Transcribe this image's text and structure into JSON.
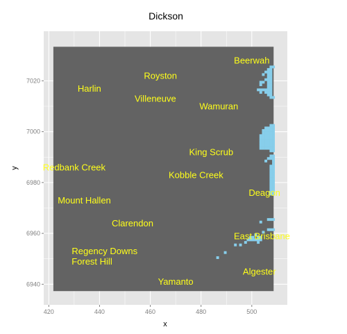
{
  "title": "Dickson",
  "colors": {
    "panel_background": "#e5e5e5",
    "gridline": "#ffffff",
    "map_land": "#636363",
    "map_water": "#87ceeb",
    "label_text": "#ffff1a"
  },
  "axes": {
    "x": {
      "title": "x",
      "range": [
        418,
        514
      ],
      "ticks": [
        {
          "value": 420,
          "label": "420"
        },
        {
          "value": 440,
          "label": "440"
        },
        {
          "value": 460,
          "label": "460"
        },
        {
          "value": 480,
          "label": "480"
        },
        {
          "value": 500,
          "label": "500"
        }
      ]
    },
    "y": {
      "title": "y",
      "range": [
        6931.9,
        7039.5
      ],
      "ticks": [
        {
          "value": 6940,
          "label": "6940"
        },
        {
          "value": 6960,
          "label": "6960"
        },
        {
          "value": 6980,
          "label": "6980"
        },
        {
          "value": 7000,
          "label": "7000"
        },
        {
          "value": 7020,
          "label": "7020"
        }
      ]
    }
  },
  "map_extent": {
    "x": [
      421.8,
      508.6
    ],
    "y": [
      6937.3,
      7033.4
    ]
  },
  "places": [
    {
      "name": "Beerwah",
      "x": 500,
      "y": 7028
    },
    {
      "name": "Royston",
      "x": 464,
      "y": 7022
    },
    {
      "name": "Harlin",
      "x": 436,
      "y": 7017
    },
    {
      "name": "Villeneuve",
      "x": 462,
      "y": 7013
    },
    {
      "name": "Wamuran",
      "x": 487,
      "y": 7010
    },
    {
      "name": "King Scrub",
      "x": 484,
      "y": 6992
    },
    {
      "name": "Redbank Creek",
      "x": 430,
      "y": 6986
    },
    {
      "name": "Kobble Creek",
      "x": 478,
      "y": 6983
    },
    {
      "name": "Deagon",
      "x": 505,
      "y": 6976
    },
    {
      "name": "Mount Hallen",
      "x": 434,
      "y": 6973
    },
    {
      "name": "Clarendon",
      "x": 453,
      "y": 6964
    },
    {
      "name": "East Brisbane",
      "x": 504,
      "y": 6959
    },
    {
      "name": "Regency Downs",
      "x": 442,
      "y": 6953
    },
    {
      "name": "Forest Hill",
      "x": 437,
      "y": 6949
    },
    {
      "name": "Algester",
      "x": 503,
      "y": 6945
    },
    {
      "name": "Yamanto",
      "x": 470,
      "y": 6941
    }
  ],
  "water_cells": [
    [
      507,
      7025
    ],
    [
      508,
      7025
    ],
    [
      506,
      7024
    ],
    [
      507,
      7024
    ],
    [
      505,
      7023
    ],
    [
      506,
      7023
    ],
    [
      507,
      7023
    ],
    [
      504,
      7022
    ],
    [
      506,
      7022
    ],
    [
      507,
      7022
    ],
    [
      506,
      7021
    ],
    [
      507,
      7021
    ],
    [
      505,
      7020
    ],
    [
      506,
      7020
    ],
    [
      507,
      7020
    ],
    [
      503,
      7019
    ],
    [
      504,
      7019
    ],
    [
      506,
      7019
    ],
    [
      507,
      7019
    ],
    [
      503,
      7018
    ],
    [
      506,
      7018
    ],
    [
      507,
      7018
    ],
    [
      506,
      7017
    ],
    [
      507,
      7017
    ],
    [
      502,
      7016
    ],
    [
      503,
      7016
    ],
    [
      504,
      7016
    ],
    [
      505,
      7016
    ],
    [
      506,
      7016
    ],
    [
      507,
      7016
    ],
    [
      503,
      7015
    ],
    [
      505,
      7015
    ],
    [
      506,
      7015
    ],
    [
      507,
      7015
    ],
    [
      506,
      7014
    ],
    [
      507,
      7014
    ],
    [
      507,
      7013
    ],
    [
      508,
      7013
    ],
    [
      507,
      7002
    ],
    [
      508,
      7002
    ],
    [
      505,
      7001
    ],
    [
      506,
      7001
    ],
    [
      507,
      7001
    ],
    [
      508,
      7001
    ],
    [
      504,
      7000
    ],
    [
      505,
      7000
    ],
    [
      506,
      7000
    ],
    [
      507,
      7000
    ],
    [
      508,
      7000
    ],
    [
      504,
      6999
    ],
    [
      505,
      6999
    ],
    [
      506,
      6999
    ],
    [
      507,
      6999
    ],
    [
      508,
      6999
    ],
    [
      503,
      6998
    ],
    [
      504,
      6998
    ],
    [
      505,
      6998
    ],
    [
      506,
      6998
    ],
    [
      507,
      6998
    ],
    [
      508,
      6998
    ],
    [
      503,
      6997
    ],
    [
      504,
      6997
    ],
    [
      505,
      6997
    ],
    [
      506,
      6997
    ],
    [
      507,
      6997
    ],
    [
      508,
      6997
    ],
    [
      503,
      6996
    ],
    [
      504,
      6996
    ],
    [
      505,
      6996
    ],
    [
      506,
      6996
    ],
    [
      507,
      6996
    ],
    [
      508,
      6996
    ],
    [
      503,
      6995
    ],
    [
      504,
      6995
    ],
    [
      505,
      6995
    ],
    [
      506,
      6995
    ],
    [
      507,
      6995
    ],
    [
      508,
      6995
    ],
    [
      503,
      6994
    ],
    [
      504,
      6994
    ],
    [
      505,
      6994
    ],
    [
      506,
      6994
    ],
    [
      507,
      6994
    ],
    [
      508,
      6994
    ],
    [
      503,
      6993
    ],
    [
      504,
      6993
    ],
    [
      505,
      6993
    ],
    [
      506,
      6993
    ],
    [
      507,
      6993
    ],
    [
      508,
      6993
    ],
    [
      507,
      6992
    ],
    [
      508,
      6992
    ],
    [
      507,
      6990
    ],
    [
      508,
      6990
    ],
    [
      506,
      6989
    ],
    [
      507,
      6989
    ],
    [
      508,
      6989
    ],
    [
      505,
      6988
    ],
    [
      508,
      6988
    ],
    [
      508,
      6987
    ],
    [
      507,
      6986
    ],
    [
      508,
      6986
    ],
    [
      507,
      6985
    ],
    [
      508,
      6985
    ],
    [
      507,
      6984
    ],
    [
      508,
      6984
    ],
    [
      507,
      6983
    ],
    [
      508,
      6983
    ],
    [
      507,
      6982
    ],
    [
      508,
      6982
    ],
    [
      507,
      6981
    ],
    [
      508,
      6981
    ],
    [
      507,
      6980
    ],
    [
      508,
      6980
    ],
    [
      507,
      6979
    ],
    [
      508,
      6979
    ],
    [
      507,
      6978
    ],
    [
      508,
      6978
    ],
    [
      507,
      6977
    ],
    [
      508,
      6977
    ],
    [
      507,
      6976
    ],
    [
      508,
      6976
    ],
    [
      507,
      6975
    ],
    [
      508,
      6975
    ],
    [
      506,
      6965
    ],
    [
      507,
      6965
    ],
    [
      508,
      6965
    ],
    [
      503,
      6964
    ],
    [
      506,
      6961
    ],
    [
      507,
      6961
    ],
    [
      508,
      6961
    ],
    [
      504,
      6960
    ],
    [
      501,
      6959
    ],
    [
      499,
      6958
    ],
    [
      500,
      6958
    ],
    [
      502,
      6958
    ],
    [
      503,
      6958
    ],
    [
      498,
      6957
    ],
    [
      499,
      6957
    ],
    [
      500,
      6957
    ],
    [
      501,
      6957
    ],
    [
      502,
      6957
    ],
    [
      503,
      6957
    ],
    [
      497,
      6956
    ],
    [
      502,
      6956
    ],
    [
      493,
      6955
    ],
    [
      495,
      6955
    ],
    [
      489,
      6952
    ],
    [
      486,
      6950
    ]
  ]
}
